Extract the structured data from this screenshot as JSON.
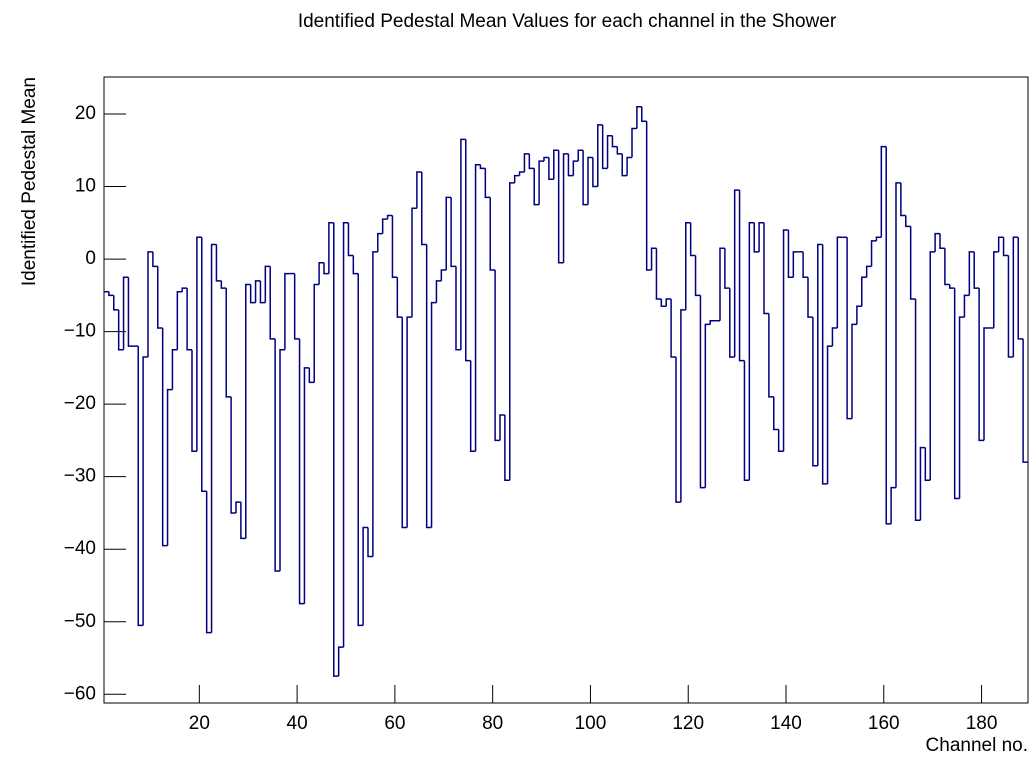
{
  "chart_data": {
    "type": "histogram",
    "title": "Identified Pedestal Mean Values for each channel in the Shower",
    "x_label": "Channel no.",
    "y_label": "Identified Pedestal Mean",
    "color": "#000080",
    "bins": [
      0.5,
      1.5,
      2.5,
      3.5,
      4.5,
      5.5,
      6.5,
      7.5,
      8.5,
      9.5,
      10.5,
      11.5,
      12.5,
      13.5,
      14.5,
      15.5,
      16.5,
      17.5,
      18.5,
      19.5,
      20.5,
      21.5,
      22.5,
      23.5,
      24.5,
      25.5,
      26.5,
      27.5,
      28.5,
      29.5,
      30.5,
      31.5,
      32.5,
      33.5,
      34.5,
      35.5,
      36.5,
      37.5,
      38.5,
      39.5,
      40.5,
      41.5,
      42.5,
      43.5,
      44.5,
      45.5,
      46.5,
      47.5,
      48.5,
      49.5,
      50.5,
      51.5,
      52.5,
      53.5,
      54.5,
      55.5,
      56.5,
      57.5,
      58.5,
      59.5,
      60.5,
      61.5,
      62.5,
      63.5,
      64.5,
      65.5,
      66.5,
      67.5,
      68.5,
      69.5,
      70.5,
      71.5,
      72.5,
      73.5,
      74.5,
      75.5,
      76.5,
      77.5,
      78.5,
      79.5,
      80.5,
      81.5,
      82.5,
      83.5,
      84.5,
      85.5,
      86.5,
      87.5,
      88.5,
      89.5,
      90.5,
      91.5,
      92.5,
      93.5,
      94.5,
      95.5,
      96.5,
      97.5,
      98.5,
      99.5,
      100.5,
      101.5,
      102.5,
      103.5,
      104.5,
      105.5,
      106.5,
      107.5,
      108.5,
      109.5,
      110.5,
      111.5,
      112.5,
      113.5,
      114.5,
      115.5,
      116.5,
      117.5,
      118.5,
      119.5,
      120.5,
      121.5,
      122.5,
      123.5,
      124.5,
      125.5,
      126.5,
      127.5,
      128.5,
      129.5,
      130.5,
      131.5,
      132.5,
      133.5,
      134.5,
      135.5,
      136.5,
      137.5,
      138.5,
      139.5,
      140.5,
      141.5,
      142.5,
      143.5,
      144.5,
      145.5,
      146.5,
      147.5,
      148.5,
      149.5,
      150.5,
      151.5,
      152.5,
      153.5,
      154.5,
      155.5,
      156.5,
      157.5,
      158.5,
      159.5,
      160.5,
      161.5,
      162.5,
      163.5,
      164.5,
      165.5,
      166.5,
      167.5,
      168.5,
      169.5,
      170.5,
      171.5,
      172.5,
      173.5,
      174.5,
      175.5,
      176.5,
      177.5,
      178.5,
      179.5,
      180.5,
      181.5,
      182.5,
      183.5,
      184.5,
      185.5,
      186.5,
      187.5,
      188.5,
      189.5
    ],
    "values": [
      -4.5,
      -5,
      -7,
      -12.5,
      -2.5,
      -12,
      -12,
      -50.5,
      -13.5,
      1,
      -1,
      -9.5,
      -39.5,
      -18,
      -12.5,
      -4.5,
      -4,
      -12.5,
      -26.5,
      3,
      -32,
      -51.5,
      2,
      -3,
      -4,
      -19,
      -35,
      -33.5,
      -38.5,
      -3.5,
      -6,
      -3,
      -6,
      -1,
      -11,
      -43,
      -12.5,
      -2,
      -2,
      -11,
      -47.5,
      -15,
      -17,
      -3.5,
      -0.5,
      -2,
      5,
      -57.5,
      -53.5,
      5,
      0.5,
      -2,
      -50.5,
      -37,
      -41,
      1,
      3.5,
      5.5,
      6,
      -2.5,
      -8,
      -37,
      -8,
      7,
      12,
      2,
      -37,
      -6,
      -3,
      -1.5,
      8.5,
      -1,
      -12.5,
      16.5,
      -14,
      -26.5,
      13,
      12.5,
      8.5,
      -1.5,
      -25,
      -21.5,
      -30.5,
      10.5,
      11.5,
      12,
      14.5,
      12.5,
      7.5,
      13.5,
      14,
      11,
      15,
      -0.5,
      14.5,
      11.5,
      13.5,
      15,
      7.5,
      14,
      10,
      18.5,
      12.5,
      17,
      15.5,
      14.5,
      11.5,
      14,
      18,
      21,
      19,
      -1.5,
      1.5,
      -5.5,
      -6.5,
      -5.5,
      -13.5,
      -33.5,
      -7,
      5,
      0.5,
      -5,
      -31.5,
      -9,
      -8.5,
      -8.5,
      1.5,
      -4,
      -13.5,
      9.5,
      -14,
      -30.5,
      5,
      1,
      5,
      -7.5,
      -19,
      -23.5,
      -26.5,
      4,
      -2.5,
      1,
      1,
      -2.5,
      -8,
      -28.5,
      2,
      -31,
      -12,
      -9.5,
      3,
      3,
      -22,
      -9,
      -6.5,
      -2.5,
      -1,
      2.5,
      3,
      15.5,
      -36.5,
      -31.5,
      10.5,
      6,
      4.5,
      -5.5,
      -36,
      -26,
      -30.5,
      1,
      3.5,
      1.5,
      -3.5,
      -4,
      -33,
      -8,
      -5,
      1,
      -4,
      -25,
      -9.5,
      -9.5,
      1,
      3,
      0.5,
      -13.5,
      3,
      -11,
      -28
    ],
    "xlim": [
      0.5,
      189.5
    ],
    "ylim": [
      -61.2,
      25.1
    ],
    "xticks": [
      20,
      40,
      60,
      80,
      100,
      120,
      140,
      160,
      180
    ],
    "yticks": [
      {
        "value": -60,
        "label": "−60"
      },
      {
        "value": -50,
        "label": "−50"
      },
      {
        "value": -40,
        "label": "−40"
      },
      {
        "value": -30,
        "label": "−30"
      },
      {
        "value": -20,
        "label": "−20"
      },
      {
        "value": -10,
        "label": "−10"
      },
      0,
      10,
      20
    ]
  }
}
